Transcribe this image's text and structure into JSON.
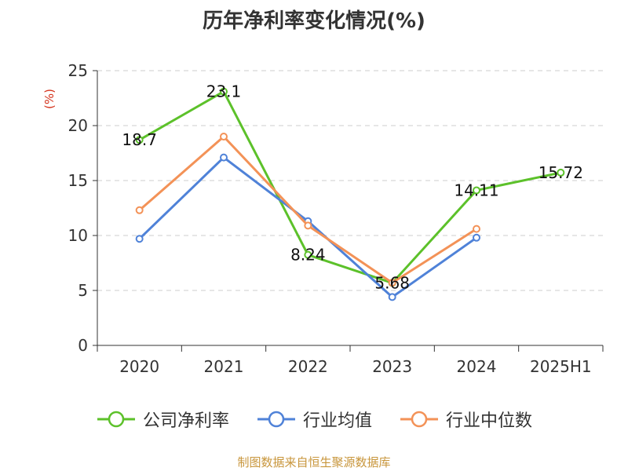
{
  "chart_data": {
    "type": "line",
    "title": "历年净利率变化情况(%)",
    "ylabel": "(%)",
    "categories": [
      "2020",
      "2021",
      "2022",
      "2023",
      "2024",
      "2025H1"
    ],
    "ylim": [
      0,
      25
    ],
    "yticks": [
      "0",
      "5",
      "10",
      "15",
      "20",
      "25"
    ],
    "grid": true,
    "legend_position": "bottom",
    "series": [
      {
        "name": "公司净利率",
        "color": "#5cc12a",
        "values": [
          18.7,
          23.1,
          8.24,
          5.68,
          14.11,
          15.72
        ],
        "labels": [
          "18.7",
          "23.1",
          "8.24",
          "5.68",
          "14.11",
          "15.72"
        ]
      },
      {
        "name": "行业均值",
        "color": "#4f82d8",
        "values": [
          9.7,
          17.1,
          11.3,
          4.4,
          9.8,
          null
        ]
      },
      {
        "name": "行业中位数",
        "color": "#f39257",
        "values": [
          12.3,
          19.0,
          10.9,
          5.7,
          10.6,
          null
        ]
      }
    ]
  },
  "source": "制图数据来自恒生聚源数据库"
}
